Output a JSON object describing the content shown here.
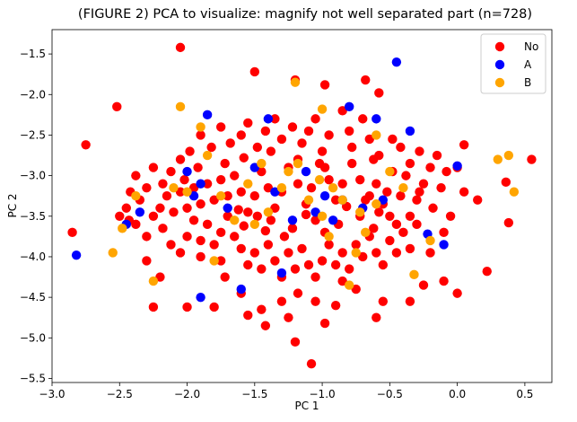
{
  "chart_data": {
    "type": "scatter",
    "title": "(FIGURE 2) PCA to visualize: magnify not well separated part (n=728)",
    "xlabel": "PC 1",
    "ylabel": "PC 2",
    "xlim": [
      -3.0,
      0.7
    ],
    "ylim": [
      -5.55,
      -1.2
    ],
    "xticks": [
      -3.0,
      -2.5,
      -2.0,
      -1.5,
      -1.0,
      -0.5,
      0.0,
      0.5
    ],
    "xtick_labels": [
      "−3.0",
      "−2.5",
      "−2.0",
      "−1.5",
      "−1.0",
      "−0.5",
      "0.0",
      "0.5"
    ],
    "yticks": [
      -1.5,
      -2.0,
      -2.5,
      -3.0,
      -3.5,
      -4.0,
      -4.5,
      -5.0,
      -5.5
    ],
    "ytick_labels": [
      "−1.5",
      "−2.0",
      "−2.5",
      "−3.0",
      "−3.5",
      "−4.0",
      "−4.5",
      "−5.0",
      "−5.5"
    ],
    "grid": false,
    "legend_position": "top-right",
    "series": [
      {
        "name": "No",
        "color": "#ff0000",
        "points": [
          [
            -2.05,
            -1.42
          ],
          [
            -1.5,
            -1.72
          ],
          [
            -1.2,
            -1.82
          ],
          [
            -0.98,
            -1.88
          ],
          [
            -0.68,
            -1.82
          ],
          [
            -0.58,
            -1.98
          ],
          [
            -2.52,
            -2.15
          ],
          [
            -2.75,
            -2.62
          ],
          [
            -2.85,
            -3.7
          ],
          [
            -2.5,
            -3.5
          ],
          [
            -2.43,
            -3.55
          ],
          [
            -2.35,
            -3.3
          ],
          [
            -2.3,
            -4.05
          ],
          [
            -2.25,
            -4.62
          ],
          [
            -2.2,
            -4.25
          ],
          [
            -2.0,
            -4.62
          ],
          [
            -1.8,
            -4.62
          ],
          [
            -1.72,
            -4.25
          ],
          [
            -1.9,
            -4.0
          ],
          [
            -1.75,
            -4.05
          ],
          [
            -1.6,
            -4.45
          ],
          [
            -1.55,
            -4.72
          ],
          [
            -1.45,
            -4.65
          ],
          [
            -1.42,
            -4.85
          ],
          [
            -1.3,
            -4.55
          ],
          [
            -1.25,
            -4.75
          ],
          [
            -1.2,
            -5.05
          ],
          [
            -1.18,
            -4.45
          ],
          [
            -1.08,
            -5.32
          ],
          [
            -1.05,
            -4.55
          ],
          [
            -0.98,
            -4.82
          ],
          [
            -0.9,
            -4.6
          ],
          [
            -0.85,
            -4.3
          ],
          [
            -0.75,
            -4.4
          ],
          [
            -0.6,
            -4.75
          ],
          [
            -0.55,
            -4.55
          ],
          [
            -0.35,
            -4.55
          ],
          [
            -0.25,
            -4.35
          ],
          [
            -0.1,
            -4.3
          ],
          [
            0.0,
            -4.45
          ],
          [
            0.22,
            -4.18
          ],
          [
            0.38,
            -3.58
          ],
          [
            0.55,
            -2.8
          ],
          [
            0.36,
            -3.08
          ],
          [
            0.15,
            -3.3
          ],
          [
            0.05,
            -3.2
          ],
          [
            0.0,
            -2.9
          ],
          [
            0.05,
            -2.62
          ],
          [
            -0.05,
            -3.5
          ],
          [
            -0.1,
            -3.7
          ],
          [
            -0.2,
            -3.95
          ],
          [
            -0.35,
            -3.9
          ],
          [
            -0.45,
            -3.6
          ],
          [
            -0.55,
            -3.35
          ],
          [
            -0.6,
            -3.1
          ],
          [
            -0.62,
            -2.8
          ],
          [
            -0.65,
            -2.55
          ],
          [
            -0.7,
            -2.3
          ],
          [
            -0.8,
            -2.45
          ],
          [
            -0.85,
            -2.2
          ],
          [
            -0.95,
            -2.5
          ],
          [
            -1.0,
            -2.7
          ],
          [
            -1.05,
            -2.3
          ],
          [
            -1.1,
            -2.45
          ],
          [
            -1.15,
            -2.6
          ],
          [
            -1.22,
            -2.4
          ],
          [
            -1.3,
            -2.55
          ],
          [
            -1.35,
            -2.3
          ],
          [
            -1.42,
            -2.45
          ],
          [
            -1.48,
            -2.65
          ],
          [
            -1.55,
            -2.35
          ],
          [
            -1.6,
            -2.5
          ],
          [
            -1.68,
            -2.6
          ],
          [
            -1.75,
            -2.4
          ],
          [
            -1.82,
            -2.65
          ],
          [
            -1.9,
            -2.5
          ],
          [
            -1.98,
            -2.7
          ],
          [
            -2.05,
            -2.8
          ],
          [
            -2.12,
            -2.95
          ],
          [
            -2.18,
            -3.1
          ],
          [
            -2.25,
            -2.9
          ],
          [
            -2.3,
            -3.15
          ],
          [
            -2.38,
            -3.0
          ],
          [
            -2.42,
            -3.2
          ],
          [
            -2.45,
            -3.4
          ],
          [
            -2.38,
            -3.6
          ],
          [
            -2.3,
            -3.75
          ],
          [
            -2.25,
            -3.5
          ],
          [
            -2.18,
            -3.65
          ],
          [
            -2.12,
            -3.85
          ],
          [
            -2.05,
            -3.95
          ],
          [
            -2.0,
            -3.75
          ],
          [
            -1.95,
            -3.55
          ],
          [
            -1.9,
            -3.8
          ],
          [
            -1.85,
            -3.6
          ],
          [
            -1.8,
            -3.85
          ],
          [
            -1.75,
            -3.7
          ],
          [
            -1.7,
            -3.5
          ],
          [
            -1.65,
            -3.75
          ],
          [
            -1.6,
            -3.9
          ],
          [
            -1.55,
            -4.1
          ],
          [
            -1.5,
            -3.95
          ],
          [
            -1.45,
            -4.15
          ],
          [
            -1.4,
            -3.85
          ],
          [
            -1.35,
            -4.05
          ],
          [
            -1.3,
            -4.25
          ],
          [
            -1.25,
            -3.95
          ],
          [
            -1.2,
            -4.15
          ],
          [
            -1.15,
            -3.9
          ],
          [
            -1.1,
            -4.1
          ],
          [
            -1.05,
            -4.25
          ],
          [
            -1.0,
            -4.05
          ],
          [
            -0.95,
            -3.85
          ],
          [
            -0.9,
            -4.1
          ],
          [
            -0.85,
            -3.95
          ],
          [
            -0.8,
            -4.15
          ],
          [
            -0.75,
            -3.85
          ],
          [
            -0.7,
            -4.0
          ],
          [
            -0.65,
            -3.75
          ],
          [
            -0.6,
            -3.95
          ],
          [
            -0.55,
            -4.1
          ],
          [
            -0.5,
            -3.8
          ],
          [
            -0.45,
            -3.95
          ],
          [
            -0.4,
            -3.7
          ],
          [
            -0.35,
            -3.5
          ],
          [
            -0.3,
            -3.3
          ],
          [
            -0.25,
            -3.1
          ],
          [
            -0.2,
            -2.9
          ],
          [
            -0.28,
            -2.7
          ],
          [
            -0.35,
            -2.85
          ],
          [
            -0.42,
            -2.65
          ],
          [
            -0.48,
            -2.95
          ],
          [
            -0.52,
            -3.2
          ],
          [
            -0.58,
            -3.45
          ],
          [
            -0.65,
            -3.25
          ],
          [
            -0.72,
            -3.05
          ],
          [
            -0.78,
            -2.85
          ],
          [
            -0.85,
            -3.1
          ],
          [
            -0.9,
            -3.3
          ],
          [
            -0.95,
            -3.05
          ],
          [
            -1.02,
            -2.85
          ],
          [
            -1.08,
            -3.15
          ],
          [
            -1.12,
            -3.35
          ],
          [
            -1.18,
            -3.1
          ],
          [
            -1.25,
            -2.9
          ],
          [
            -1.3,
            -3.2
          ],
          [
            -1.35,
            -3.4
          ],
          [
            -1.4,
            -3.15
          ],
          [
            -1.45,
            -2.95
          ],
          [
            -1.5,
            -3.25
          ],
          [
            -1.55,
            -3.45
          ],
          [
            -1.6,
            -3.2
          ],
          [
            -1.65,
            -3.0
          ],
          [
            -1.7,
            -3.25
          ],
          [
            -1.75,
            -3.05
          ],
          [
            -1.8,
            -3.3
          ],
          [
            -1.85,
            -3.1
          ],
          [
            -1.9,
            -3.35
          ],
          [
            -1.95,
            -3.15
          ],
          [
            -2.0,
            -3.4
          ],
          [
            -2.05,
            -3.2
          ],
          [
            -2.1,
            -3.45
          ],
          [
            -2.15,
            -3.25
          ],
          [
            -2.2,
            -3.4
          ],
          [
            -1.58,
            -3.62
          ],
          [
            -1.38,
            -3.55
          ],
          [
            -1.22,
            -3.65
          ],
          [
            -1.05,
            -3.55
          ],
          [
            -0.88,
            -3.6
          ],
          [
            -0.72,
            -3.5
          ],
          [
            -0.62,
            -3.65
          ],
          [
            -1.48,
            -3.5
          ],
          [
            -1.28,
            -3.75
          ],
          [
            -0.98,
            -3.7
          ],
          [
            -1.62,
            -3.42
          ],
          [
            -1.42,
            -3.68
          ],
          [
            -1.12,
            -3.48
          ],
          [
            -0.82,
            -3.38
          ],
          [
            -0.68,
            -3.3
          ],
          [
            -0.5,
            -3.5
          ],
          [
            -0.42,
            -3.25
          ],
          [
            -0.3,
            -3.6
          ],
          [
            -0.18,
            -3.4
          ],
          [
            -0.12,
            -3.15
          ],
          [
            -0.08,
            -2.95
          ],
          [
            -0.15,
            -2.75
          ],
          [
            -1.72,
            -2.85
          ],
          [
            -1.92,
            -2.9
          ],
          [
            -2.02,
            -3.05
          ],
          [
            -1.58,
            -2.78
          ],
          [
            -1.38,
            -2.7
          ],
          [
            -1.18,
            -2.8
          ],
          [
            -0.98,
            -2.9
          ],
          [
            -0.78,
            -2.65
          ],
          [
            -0.58,
            -2.75
          ],
          [
            -0.48,
            -2.55
          ],
          [
            -0.38,
            -3.0
          ],
          [
            -0.28,
            -3.2
          ]
        ]
      },
      {
        "name": "A",
        "color": "#0000ff",
        "points": [
          [
            -0.45,
            -1.6
          ],
          [
            -2.82,
            -3.98
          ],
          [
            -2.45,
            -3.6
          ],
          [
            -2.35,
            -3.45
          ],
          [
            -1.9,
            -4.5
          ],
          [
            -1.6,
            -4.4
          ],
          [
            -1.85,
            -2.25
          ],
          [
            -2.0,
            -2.95
          ],
          [
            -1.95,
            -3.25
          ],
          [
            -0.8,
            -2.15
          ],
          [
            -0.6,
            -2.3
          ],
          [
            -0.35,
            -2.45
          ],
          [
            -0.22,
            -3.72
          ],
          [
            0.0,
            -2.88
          ],
          [
            -1.4,
            -2.3
          ],
          [
            -1.5,
            -2.9
          ],
          [
            -1.35,
            -3.2
          ],
          [
            -1.22,
            -3.55
          ],
          [
            -1.05,
            -3.45
          ],
          [
            -0.85,
            -3.3
          ],
          [
            -0.7,
            -3.4
          ],
          [
            -0.55,
            -3.3
          ],
          [
            -0.1,
            -3.85
          ],
          [
            -1.3,
            -4.2
          ],
          [
            -1.7,
            -3.4
          ],
          [
            -1.9,
            -3.1
          ],
          [
            -1.12,
            -2.95
          ],
          [
            -0.98,
            -3.25
          ],
          [
            -0.92,
            -3.55
          ]
        ]
      },
      {
        "name": "B",
        "color": "#ffa500",
        "points": [
          [
            -2.05,
            -2.15
          ],
          [
            -1.2,
            -1.85
          ],
          [
            -1.0,
            -2.18
          ],
          [
            -0.6,
            -2.5
          ],
          [
            -2.55,
            -3.95
          ],
          [
            -2.48,
            -3.65
          ],
          [
            -2.38,
            -3.25
          ],
          [
            -2.25,
            -4.3
          ],
          [
            -2.1,
            -3.15
          ],
          [
            -2.0,
            -3.2
          ],
          [
            -1.9,
            -2.4
          ],
          [
            -1.85,
            -2.75
          ],
          [
            -1.8,
            -4.05
          ],
          [
            -1.55,
            -3.1
          ],
          [
            -1.45,
            -2.85
          ],
          [
            -1.4,
            -3.45
          ],
          [
            -1.3,
            -3.15
          ],
          [
            -1.25,
            -2.95
          ],
          [
            -1.18,
            -2.85
          ],
          [
            -1.1,
            -3.3
          ],
          [
            -1.02,
            -3.05
          ],
          [
            -0.92,
            -3.15
          ],
          [
            -0.85,
            -3.3
          ],
          [
            -0.8,
            -4.35
          ],
          [
            -0.75,
            -3.95
          ],
          [
            -0.68,
            -3.7
          ],
          [
            -0.6,
            -3.35
          ],
          [
            -0.5,
            -2.95
          ],
          [
            -0.4,
            -3.15
          ],
          [
            -0.32,
            -4.22
          ],
          [
            0.3,
            -2.8
          ],
          [
            0.38,
            -2.75
          ],
          [
            0.42,
            -3.2
          ],
          [
            -0.2,
            -3.8
          ],
          [
            -1.65,
            -3.55
          ],
          [
            -1.0,
            -3.5
          ],
          [
            -0.95,
            -3.75
          ],
          [
            -0.72,
            -3.45
          ],
          [
            -1.75,
            -3.25
          ],
          [
            -1.5,
            -3.6
          ]
        ]
      }
    ]
  }
}
